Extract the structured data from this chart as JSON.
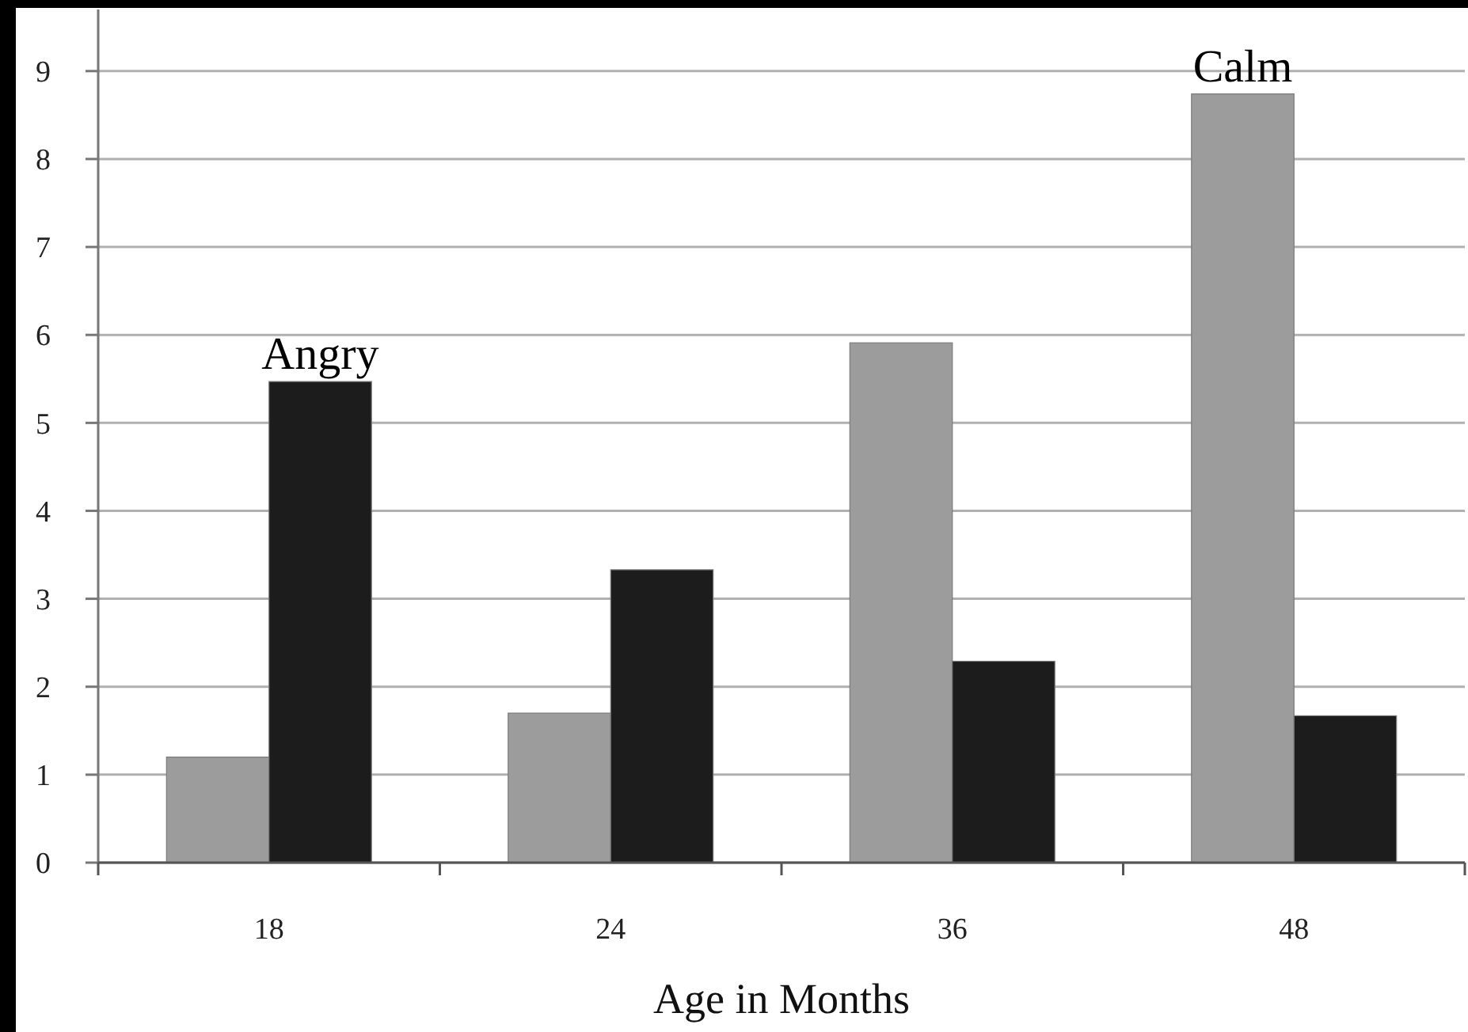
{
  "chart_data": {
    "type": "bar",
    "xlabel": "Age in Months",
    "categories": [
      "18",
      "24",
      "36",
      "48"
    ],
    "series": [
      {
        "name": "Calm",
        "color": "#9c9c9c",
        "values": [
          1.2,
          1.7,
          5.91,
          8.74
        ]
      },
      {
        "name": "Angry",
        "color": "#1c1c1c",
        "values": [
          5.47,
          3.33,
          2.29,
          1.67
        ]
      }
    ],
    "ylim": [
      0,
      9.7
    ],
    "yticks": [
      0,
      1,
      2,
      3,
      4,
      5,
      6,
      7,
      8,
      9
    ],
    "grid": "y"
  }
}
